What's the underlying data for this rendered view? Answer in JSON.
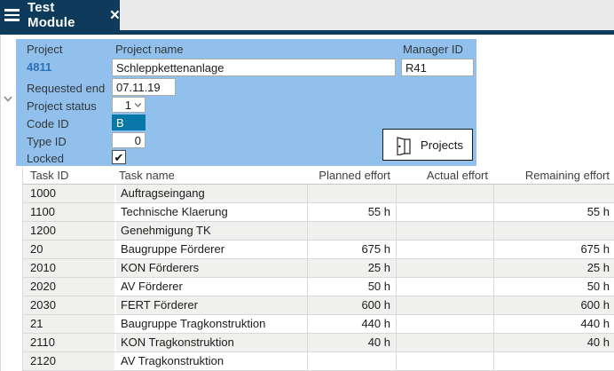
{
  "tab": {
    "title": "Test Module",
    "close_label": "×"
  },
  "form": {
    "project_label": "Project",
    "project_value": "4811",
    "project_name_label": "Project name",
    "project_name_value": "Schleppkettenanlage",
    "manager_id_label": "Manager ID",
    "manager_id_value": "R41",
    "requested_end_label": "Requested end",
    "requested_end_value": "07.11.19",
    "project_status_label": "Project status",
    "project_status_value": "1",
    "code_id_label": "Code ID",
    "code_id_value": "B",
    "type_id_label": "Type ID",
    "type_id_value": "0",
    "locked_label": "Locked",
    "locked_checked": "✔",
    "projects_button_label": "Projects"
  },
  "table": {
    "columns": [
      "Task ID",
      "Task name",
      "Planned effort",
      "Actual effort",
      "Remaining effort"
    ],
    "rows": [
      {
        "task_id": "1000",
        "task_name": "Auftragseingang",
        "planned": "",
        "actual": "",
        "remaining": ""
      },
      {
        "task_id": "1100",
        "task_name": "Technische Klaerung",
        "planned": "55 h",
        "actual": "",
        "remaining": "55 h"
      },
      {
        "task_id": "1200",
        "task_name": "Genehmigung TK",
        "planned": "",
        "actual": "",
        "remaining": ""
      },
      {
        "task_id": "20",
        "task_name": "Baugruppe Förderer",
        "planned": "675 h",
        "actual": "",
        "remaining": "675 h"
      },
      {
        "task_id": "2010",
        "task_name": "KON Förderers",
        "planned": "25 h",
        "actual": "",
        "remaining": "25 h"
      },
      {
        "task_id": "2020",
        "task_name": "AV Förderer",
        "planned": "50 h",
        "actual": "",
        "remaining": "50 h"
      },
      {
        "task_id": "2030",
        "task_name": "FERT Förderer",
        "planned": "600 h",
        "actual": "",
        "remaining": "600 h"
      },
      {
        "task_id": "21",
        "task_name": "Baugruppe Tragkonstruktion",
        "planned": "440 h",
        "actual": "",
        "remaining": "440 h"
      },
      {
        "task_id": "2110",
        "task_name": "KON Tragkonstruktion",
        "planned": "40 h",
        "actual": "",
        "remaining": "40 h"
      },
      {
        "task_id": "2120",
        "task_name": "AV Tragkonstruktion",
        "planned": "",
        "actual": "",
        "remaining": ""
      }
    ]
  },
  "colors": {
    "tab_navy": "#0e3a5c",
    "panel_blue": "#92c0ed",
    "selected_field_blue": "#0878a8",
    "project_link_blue": "#2b72b8",
    "stripe_gray": "#f0f0ee"
  }
}
